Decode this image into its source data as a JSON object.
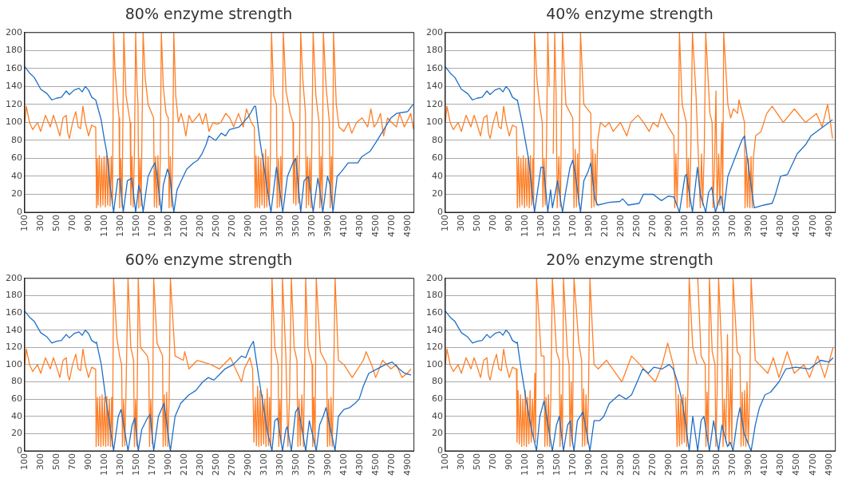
{
  "chart_data": [
    {
      "type": "line",
      "title": "80% enzyme strength",
      "xlim": [
        100,
        4980
      ],
      "xticks": [
        100,
        300,
        500,
        700,
        900,
        1100,
        1300,
        1500,
        1700,
        1900,
        2100,
        2300,
        2500,
        2700,
        2900,
        3100,
        3300,
        3500,
        3700,
        3900,
        4100,
        4300,
        4500,
        4700,
        4900
      ],
      "ylim": [
        0,
        200
      ],
      "yticks": [
        0,
        20,
        40,
        60,
        80,
        100,
        120,
        140,
        160,
        180,
        200
      ],
      "grid": "y",
      "marker": "none",
      "series": [
        {
          "color": "#1f6fc8",
          "x": [
            100,
            160,
            220,
            300,
            380,
            440,
            500,
            560,
            620,
            660,
            720,
            780,
            820,
            860,
            900,
            940,
            990,
            1058,
            1100,
            1128,
            1170,
            1214,
            1266,
            1294,
            1335,
            1387,
            1440,
            1491,
            1530,
            1560,
            1584,
            1647,
            1699,
            1733,
            1760,
            1813,
            1837,
            1889,
            1920,
            1969,
            2010,
            2062,
            2131,
            2218,
            2270,
            2322,
            2373,
            2408,
            2494,
            2564,
            2616,
            2668,
            2789,
            2841,
            2910,
            2979,
            2995,
            3048,
            3083,
            3135,
            3187,
            3256,
            3290,
            3335,
            3394,
            3463,
            3498,
            3530,
            3560,
            3602,
            3654,
            3690,
            3716,
            3775,
            3800,
            3837,
            3896,
            3930,
            3965,
            4017,
            4069,
            4155,
            4276,
            4328,
            4432,
            4519,
            4588,
            4692,
            4761,
            4900,
            4969
          ],
          "values": [
            162,
            155,
            150,
            137,
            132,
            125,
            127,
            128,
            135,
            131,
            136,
            138,
            134,
            140,
            136,
            128,
            125,
            103,
            80,
            67,
            30,
            0,
            37,
            37,
            0,
            35,
            38,
            0,
            30,
            20,
            0,
            40,
            50,
            55,
            40,
            0,
            30,
            48,
            40,
            0,
            25,
            35,
            48,
            55,
            58,
            65,
            75,
            85,
            80,
            88,
            85,
            92,
            95,
            100,
            107,
            118,
            118,
            80,
            60,
            30,
            0,
            50,
            30,
            0,
            40,
            55,
            60,
            30,
            0,
            35,
            40,
            20,
            0,
            38,
            25,
            0,
            40,
            30,
            0,
            40,
            45,
            55,
            55,
            62,
            68,
            80,
            90,
            105,
            110,
            112,
            120
          ]
        },
        {
          "color": "#ff7f27",
          "x": [
            100,
            120,
            160,
            200,
            260,
            300,
            360,
            420,
            460,
            500,
            540,
            580,
            620,
            640,
            660,
            700,
            740,
            770,
            800,
            830,
            860,
            900,
            940,
            980,
            990,
            1000,
            1010,
            1020,
            1035,
            1050,
            1065,
            1080,
            1095,
            1110,
            1125,
            1140,
            1155,
            1170,
            1185,
            1200,
            1214,
            1231,
            1266,
            1283,
            1290,
            1305,
            1320,
            1342,
            1370,
            1405,
            1422,
            1430,
            1445,
            1460,
            1475,
            1491,
            1508,
            1520,
            1530,
            1545,
            1560,
            1584,
            1610,
            1647,
            1716,
            1725,
            1740,
            1755,
            1770,
            1785,
            1800,
            1813,
            1837,
            1872,
            1900,
            1910,
            1925,
            1940,
            1955,
            1969,
            1993,
            2027,
            2060,
            2090,
            2120,
            2160,
            2200,
            2250,
            2290,
            2330,
            2370,
            2410,
            2460,
            2510,
            2560,
            2620,
            2670,
            2720,
            2780,
            2840,
            2880,
            2940,
            2979,
            2989,
            3000,
            3015,
            3030,
            3045,
            3060,
            3075,
            3090,
            3105,
            3120,
            3135,
            3150,
            3165,
            3180,
            3194,
            3222,
            3256,
            3265,
            3280,
            3295,
            3310,
            3325,
            3342,
            3376,
            3428,
            3463,
            3470,
            3485,
            3500,
            3515,
            3530,
            3545,
            3560,
            3585,
            3620,
            3630,
            3645,
            3660,
            3675,
            3690,
            3716,
            3750,
            3790,
            3800,
            3815,
            3830,
            3844,
            3878,
            3920,
            3930,
            3945,
            3958,
            3972,
            4006,
            4040,
            4100,
            4160,
            4200,
            4260,
            4330,
            4400,
            4440,
            4480,
            4520,
            4560,
            4600,
            4650,
            4700,
            4760,
            4800,
            4860,
            4940,
            4975
          ],
          "values": [
            100,
            118,
            100,
            92,
            100,
            90,
            108,
            95,
            108,
            97,
            85,
            105,
            108,
            88,
            82,
            100,
            112,
            95,
            93,
            118,
            100,
            85,
            97,
            95,
            95,
            5,
            60,
            8,
            63,
            6,
            60,
            8,
            62,
            6,
            63,
            8,
            60,
            7,
            62,
            10,
            200,
            160,
            120,
            105,
            5,
            60,
            6,
            200,
            130,
            110,
            100,
            8,
            62,
            6,
            63,
            200,
            140,
            120,
            5,
            60,
            7,
            200,
            150,
            120,
            105,
            6,
            62,
            5,
            63,
            8,
            60,
            200,
            140,
            110,
            105,
            5,
            62,
            6,
            60,
            200,
            130,
            100,
            110,
            100,
            85,
            108,
            100,
            105,
            110,
            98,
            110,
            90,
            100,
            98,
            100,
            110,
            105,
            95,
            110,
            95,
            115,
            100,
            95,
            5,
            63,
            6,
            62,
            5,
            60,
            8,
            65,
            5,
            70,
            6,
            62,
            8,
            60,
            200,
            130,
            120,
            5,
            60,
            6,
            62,
            8,
            200,
            135,
            110,
            100,
            10,
            60,
            8,
            63,
            10,
            60,
            200,
            150,
            110,
            5,
            62,
            8,
            60,
            5,
            200,
            130,
            100,
            5,
            62,
            8,
            200,
            140,
            100,
            5,
            62,
            8,
            200,
            120,
            95,
            90,
            100,
            88,
            100,
            105,
            95,
            115,
            95,
            100,
            110,
            85,
            105,
            100,
            95,
            110,
            95,
            110,
            92
          ]
        }
      ]
    },
    {
      "type": "line",
      "title": "40% enzyme strength",
      "xlim": [
        100,
        4980
      ],
      "xticks": [
        100,
        300,
        500,
        700,
        900,
        1100,
        1300,
        1500,
        1700,
        1900,
        2100,
        2300,
        2500,
        2700,
        2900,
        3100,
        3300,
        3500,
        3700,
        3900,
        4100,
        4300,
        4500,
        4700,
        4900
      ],
      "ylim": [
        0,
        200
      ],
      "yticks": [
        0,
        20,
        40,
        60,
        80,
        100,
        120,
        140,
        160,
        180,
        200
      ],
      "grid": "y",
      "marker": "none",
      "series": [
        {
          "color": "#1f6fc8",
          "x": [
            100,
            160,
            220,
            300,
            380,
            440,
            500,
            560,
            620,
            660,
            720,
            780,
            820,
            860,
            900,
            940,
            990,
            1001,
            1060,
            1140,
            1216,
            1296,
            1330,
            1382,
            1417,
            1440,
            1504,
            1530,
            1566,
            1600,
            1660,
            1694,
            1730,
            1791,
            1833,
            1885,
            1920,
            1972,
            2006,
            2145,
            2284,
            2318,
            2388,
            2526,
            2578,
            2700,
            2804,
            2890,
            2960,
            3029,
            3098,
            3115,
            3192,
            3254,
            3290,
            3358,
            3393,
            3434,
            3479,
            3531,
            3550,
            3583,
            3635,
            3722,
            3809,
            3843,
            3878,
            3965,
            4086,
            4190,
            4230,
            4294,
            4380,
            4450,
            4502,
            4606,
            4675,
            4779,
            4900,
            4945
          ],
          "values": [
            162,
            155,
            150,
            137,
            132,
            125,
            127,
            128,
            135,
            131,
            136,
            138,
            134,
            140,
            136,
            128,
            125,
            125,
            100,
            60,
            0,
            50,
            50,
            0,
            25,
            5,
            35,
            20,
            0,
            20,
            50,
            58,
            40,
            0,
            35,
            45,
            55,
            15,
            8,
            11,
            12,
            15,
            8,
            10,
            20,
            20,
            13,
            18,
            17,
            0,
            40,
            42,
            0,
            50,
            20,
            0,
            22,
            28,
            0,
            15,
            18,
            0,
            40,
            60,
            80,
            85,
            60,
            5,
            8,
            10,
            20,
            40,
            42,
            55,
            65,
            75,
            85,
            92,
            100,
            103
          ]
        },
        {
          "color": "#ff7f27",
          "x": [
            100,
            120,
            160,
            200,
            260,
            300,
            360,
            420,
            460,
            500,
            540,
            580,
            620,
            640,
            660,
            700,
            740,
            770,
            800,
            830,
            860,
            900,
            940,
            980,
            990,
            1001,
            1015,
            1030,
            1045,
            1060,
            1075,
            1090,
            1105,
            1120,
            1135,
            1150,
            1165,
            1180,
            1195,
            1205,
            1216,
            1244,
            1278,
            1313,
            1320,
            1335,
            1350,
            1365,
            1382,
            1400,
            1434,
            1450,
            1469,
            1486,
            1500,
            1520,
            1540,
            1566,
            1608,
            1694,
            1710,
            1725,
            1740,
            1755,
            1770,
            1791,
            1833,
            1920,
            1930,
            1945,
            1960,
            1975,
            1989,
            2006,
            2041,
            2100,
            2150,
            2200,
            2290,
            2370,
            2420,
            2510,
            2580,
            2650,
            2700,
            2760,
            2804,
            2890,
            2960,
            2970,
            2985,
            3000,
            3015,
            3029,
            3063,
            3115,
            3125,
            3140,
            3155,
            3170,
            3192,
            3237,
            3290,
            3305,
            3320,
            3340,
            3358,
            3410,
            3438,
            3450,
            3470,
            3486,
            3500,
            3520,
            3535,
            3560,
            3570,
            3583,
            3635,
            3670,
            3705,
            3757,
            3774,
            3843,
            3850,
            3865,
            3880,
            3895,
            3910,
            3925,
            3940,
            3954,
            3982,
            4051,
            4121,
            4190,
            4328,
            4467,
            4606,
            4744,
            4814,
            4883,
            4918,
            4945
          ],
          "values": [
            100,
            118,
            100,
            92,
            100,
            90,
            108,
            95,
            108,
            97,
            85,
            105,
            108,
            88,
            82,
            100,
            112,
            95,
            93,
            118,
            100,
            85,
            97,
            95,
            95,
            5,
            62,
            6,
            60,
            8,
            63,
            5,
            60,
            7,
            62,
            5,
            63,
            8,
            60,
            6,
            200,
            150,
            120,
            100,
            6,
            60,
            8,
            68,
            200,
            140,
            null,
            65,
            200,
            130,
            5,
            62,
            6,
            200,
            120,
            105,
            5,
            70,
            6,
            65,
            8,
            200,
            120,
            110,
            5,
            70,
            6,
            65,
            8,
            80,
            100,
            95,
            100,
            90,
            100,
            85,
            100,
            108,
            100,
            90,
            100,
            95,
            110,
            95,
            85,
            5,
            65,
            8,
            70,
            200,
            120,
            100,
            5,
            60,
            6,
            62,
            200,
            130,
            5,
            65,
            8,
            70,
            200,
            110,
            100,
            5,
            60,
            135,
            5,
            65,
            8,
            100,
            5,
            200,
            120,
            105,
            115,
            110,
            125,
            100,
            5,
            62,
            6,
            60,
            5,
            62,
            5,
            60,
            85,
            90,
            110,
            118,
            100,
            115,
            100,
            110,
            95,
            120,
            100,
            82
          ]
        }
      ]
    },
    {
      "type": "line",
      "title": "60% enzyme strength",
      "xlim": [
        100,
        4980
      ],
      "xticks": [
        100,
        300,
        500,
        700,
        900,
        1100,
        1300,
        1500,
        1700,
        1900,
        2100,
        2300,
        2500,
        2700,
        2900,
        3100,
        3300,
        3500,
        3700,
        3900,
        4100,
        4300,
        4500,
        4700,
        4900
      ],
      "ylim": [
        0,
        200
      ],
      "yticks": [
        0,
        20,
        40,
        60,
        80,
        100,
        120,
        140,
        160,
        180,
        200
      ],
      "grid": "y",
      "marker": "none",
      "series": [
        {
          "color": "#1f6fc8",
          "x": [
            100,
            160,
            220,
            300,
            380,
            440,
            500,
            560,
            620,
            660,
            720,
            780,
            820,
            860,
            900,
            940,
            990,
            1000,
            1060,
            1117,
            1214,
            1273,
            1308,
            1395,
            1447,
            1480,
            1523,
            1568,
            1638,
            1672,
            1717,
            1776,
            1846,
            1926,
            1985,
            2055,
            2159,
            2245,
            2332,
            2401,
            2471,
            2557,
            2610,
            2714,
            2818,
            2870,
            2922,
            2967,
            3043,
            3095,
            3148,
            3200,
            3235,
            3270,
            3332,
            3374,
            3391,
            3443,
            3495,
            3530,
            3623,
            3668,
            3755,
            3797,
            3842,
            3877,
            3991,
            4033,
            4102,
            4172,
            4241,
            4293,
            4345,
            4414,
            4518,
            4622,
            4707,
            4794,
            4863,
            4943
          ],
          "values": [
            162,
            155,
            150,
            137,
            132,
            125,
            127,
            128,
            135,
            131,
            136,
            138,
            134,
            140,
            136,
            128,
            125,
            126,
            100,
            60,
            0,
            40,
            48,
            0,
            30,
            38,
            0,
            25,
            38,
            42,
            0,
            40,
            55,
            0,
            40,
            55,
            65,
            70,
            80,
            85,
            82,
            90,
            95,
            100,
            110,
            108,
            120,
            127,
            80,
            50,
            20,
            0,
            35,
            38,
            0,
            25,
            28,
            0,
            45,
            50,
            0,
            35,
            0,
            30,
            40,
            50,
            0,
            40,
            48,
            50,
            55,
            60,
            75,
            90,
            95,
            100,
            103,
            95,
            90,
            88
          ]
        },
        {
          "color": "#ff7f27",
          "x": [
            100,
            120,
            160,
            200,
            260,
            300,
            360,
            420,
            460,
            500,
            540,
            580,
            620,
            640,
            660,
            700,
            740,
            770,
            800,
            830,
            860,
            900,
            940,
            980,
            989,
            995,
            1010,
            1025,
            1040,
            1055,
            1070,
            1085,
            1100,
            1115,
            1130,
            1145,
            1160,
            1175,
            1190,
            1200,
            1214,
            1256,
            1290,
            1315,
            1325,
            1340,
            1355,
            1370,
            1395,
            1430,
            1465,
            1475,
            1490,
            1505,
            1523,
            1551,
            1638,
            1655,
            1665,
            1680,
            1700,
            1717,
            1759,
            1828,
            1835,
            1850,
            1865,
            1880,
            1895,
            1910,
            1926,
            1985,
            2089,
            2106,
            2159,
            2263,
            2436,
            2540,
            2679,
            2818,
            2853,
            2922,
            2957,
            2974,
            2990,
            3005,
            3020,
            3035,
            3050,
            3065,
            3080,
            3095,
            3110,
            3125,
            3140,
            3155,
            3170,
            3185,
            3200,
            3235,
            3277,
            3285,
            3300,
            3315,
            3332,
            3374,
            3400,
            3420,
            3443,
            3478,
            3513,
            3525,
            3540,
            3555,
            3575,
            3595,
            3623,
            3651,
            3703,
            3710,
            3725,
            3740,
            3755,
            3807,
            3887,
            3895,
            3910,
            3925,
            3940,
            3955,
            3970,
            3991,
            4033,
            4102,
            4206,
            4345,
            4380,
            4449,
            4500,
            4587,
            4691,
            4760,
            4829,
            4898,
            4943
          ],
          "values": [
            100,
            118,
            100,
            92,
            100,
            90,
            108,
            95,
            108,
            97,
            85,
            105,
            108,
            88,
            82,
            100,
            112,
            95,
            93,
            118,
            100,
            85,
            97,
            95,
            95,
            5,
            62,
            6,
            63,
            5,
            65,
            6,
            62,
            5,
            63,
            6,
            60,
            5,
            62,
            5,
            200,
            130,
            110,
            100,
            5,
            60,
            6,
            70,
            200,
            120,
            105,
            5,
            60,
            6,
            200,
            120,
            110,
            100,
            5,
            60,
            8,
            200,
            125,
            110,
            5,
            65,
            6,
            68,
            5,
            60,
            200,
            110,
            105,
            115,
            95,
            105,
            100,
            95,
            108,
            80,
            95,
            108,
            95,
            10,
            62,
            6,
            75,
            5,
            70,
            6,
            65,
            8,
            60,
            5,
            72,
            6,
            62,
            5,
            200,
            120,
            100,
            5,
            60,
            8,
            200,
            110,
            5,
            62,
            200,
            120,
            105,
            5,
            60,
            6,
            65,
            5,
            200,
            120,
            100,
            5,
            62,
            6,
            200,
            115,
            100,
            5,
            60,
            6,
            62,
            5,
            65,
            200,
            105,
            100,
            85,
            105,
            115,
            100,
            85,
            105,
            95,
            100,
            85,
            90,
            95
          ]
        }
      ]
    },
    {
      "type": "line",
      "title": "20% enzyme strength",
      "xlim": [
        100,
        4980
      ],
      "xticks": [
        100,
        300,
        500,
        700,
        900,
        1100,
        1300,
        1500,
        1700,
        1900,
        2100,
        2300,
        2500,
        2700,
        2900,
        3100,
        3300,
        3500,
        3700,
        3900,
        4100,
        4300,
        4500,
        4700,
        4900
      ],
      "ylim": [
        0,
        200
      ],
      "yticks": [
        0,
        20,
        40,
        60,
        80,
        100,
        120,
        140,
        160,
        180,
        200
      ],
      "grid": "y",
      "marker": "none",
      "series": [
        {
          "color": "#1f6fc8",
          "x": [
            100,
            160,
            220,
            300,
            380,
            440,
            500,
            560,
            620,
            660,
            720,
            780,
            820,
            860,
            900,
            940,
            990,
            1000,
            1040,
            1109,
            1178,
            1241,
            1283,
            1335,
            1439,
            1491,
            1526,
            1578,
            1630,
            1665,
            1683,
            1710,
            1752,
            1822,
            1909,
            1961,
            2030,
            2083,
            2152,
            2274,
            2361,
            2430,
            2500,
            2570,
            2639,
            2709,
            2813,
            2900,
            2952,
            3004,
            3057,
            3109,
            3151,
            3196,
            3258,
            3300,
            3335,
            3404,
            3457,
            3519,
            3561,
            3630,
            3665,
            3700,
            3752,
            3787,
            3839,
            3926,
            3978,
            4030,
            4100,
            4169,
            4274,
            4361,
            4482,
            4656,
            4795,
            4900,
            4952
          ],
          "values": [
            162,
            155,
            150,
            137,
            132,
            125,
            127,
            128,
            135,
            131,
            136,
            138,
            134,
            140,
            136,
            128,
            125,
            126,
            100,
            60,
            25,
            0,
            40,
            58,
            0,
            30,
            40,
            0,
            30,
            35,
            15,
            0,
            35,
            45,
            0,
            35,
            35,
            40,
            55,
            65,
            60,
            65,
            80,
            95,
            90,
            97,
            95,
            100,
            95,
            80,
            60,
            30,
            0,
            40,
            0,
            35,
            40,
            0,
            35,
            0,
            30,
            5,
            10,
            0,
            35,
            50,
            20,
            0,
            30,
            50,
            65,
            68,
            80,
            95,
            97,
            95,
            105,
            103,
            108
          ]
        },
        {
          "color": "#ff7f27",
          "x": [
            100,
            120,
            160,
            200,
            260,
            300,
            360,
            420,
            460,
            500,
            540,
            580,
            620,
            640,
            660,
            700,
            740,
            770,
            800,
            830,
            860,
            900,
            940,
            980,
            990,
            997,
            1010,
            1025,
            1040,
            1055,
            1070,
            1085,
            1100,
            1115,
            1130,
            1145,
            1160,
            1175,
            1190,
            1205,
            1220,
            1230,
            1241,
            1300,
            1335,
            1345,
            1360,
            1375,
            1390,
            1405,
            1420,
            1439,
            1491,
            1526,
            1535,
            1550,
            1565,
            1578,
            1630,
            1648,
            1660,
            1675,
            1690,
            1710,
            1770,
            1805,
            1815,
            1830,
            1845,
            1860,
            1875,
            1890,
            1909,
            1961,
            2013,
            2117,
            2309,
            2430,
            2535,
            2726,
            2813,
            2882,
            2952,
            2980,
            3000,
            3015,
            3030,
            3045,
            3060,
            3075,
            3090,
            3105,
            3120,
            3135,
            3151,
            3196,
            3248,
            3255,
            3258,
            3300,
            3352,
            3360,
            3375,
            3390,
            3404,
            3439,
            3474,
            3485,
            3500,
            3519,
            3561,
            3575,
            3590,
            3610,
            3630,
            3650,
            3670,
            3685,
            3700,
            3752,
            3787,
            3800,
            3815,
            3830,
            3845,
            3860,
            3875,
            3890,
            3910,
            3926,
            3978,
            4030,
            4134,
            4204,
            4274,
            4378,
            4465,
            4587,
            4656,
            4760,
            4847,
            4952
          ],
          "values": [
            100,
            118,
            100,
            92,
            100,
            90,
            108,
            95,
            108,
            97,
            85,
            105,
            108,
            88,
            82,
            100,
            112,
            95,
            93,
            118,
            100,
            85,
            97,
            95,
            95,
            10,
            70,
            8,
            65,
            5,
            60,
            6,
            70,
            5,
            62,
            8,
            70,
            10,
            60,
            15,
            90,
            10,
            200,
            110,
            110,
            5,
            62,
            6,
            65,
            5,
            60,
            200,
            115,
            105,
            5,
            65,
            8,
            200,
            110,
            100,
            5,
            80,
            8,
            200,
            125,
            105,
            5,
            72,
            6,
            65,
            8,
            60,
            200,
            100,
            95,
            105,
            80,
            110,
            100,
            80,
            100,
            125,
            100,
            80,
            5,
            65,
            6,
            60,
            8,
            65,
            10,
            62,
            5,
            75,
            200,
            120,
            100,
            null,
            200,
            110,
            100,
            5,
            68,
            6,
            200,
            115,
            100,
            5,
            65,
            200,
            110,
            5,
            60,
            10,
            135,
            6,
            95,
            5,
            200,
            115,
            110,
            5,
            68,
            6,
            70,
            5,
            80,
            8,
            70,
            200,
            105,
            100,
            90,
            108,
            85,
            115,
            90,
            100,
            85,
            110,
            85,
            120
          ]
        }
      ]
    }
  ]
}
